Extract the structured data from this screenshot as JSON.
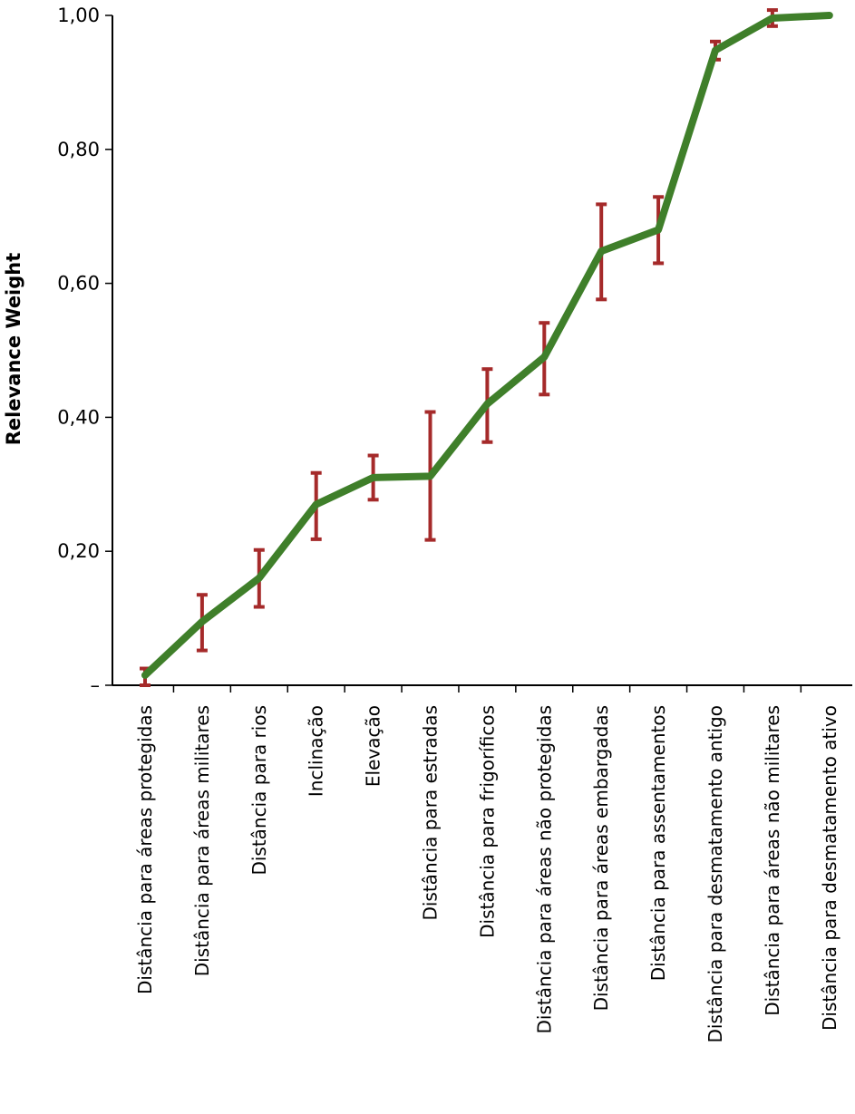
{
  "chart_data": {
    "type": "line",
    "title": "",
    "xlabel": "",
    "ylabel": "Relevance Weight",
    "ylim": [
      0,
      1
    ],
    "yticks": [
      "–",
      "0,20",
      "0,40",
      "0,60",
      "0,80",
      "1,00"
    ],
    "ytick_values": [
      0,
      0.2,
      0.4,
      0.6,
      0.8,
      1.0
    ],
    "grid": false,
    "legend": "none",
    "colors": {
      "line": "#3f7f2a",
      "error_bars": "#a52a2a"
    },
    "categories": [
      "Distância para áreas protegidas",
      "Distância para áreas militares",
      "Distância para rios",
      "Inclinação",
      "Elevação",
      "Distância para estradas",
      "Distância para frigoríficos",
      "Distância para áreas não protegidas",
      "Distância para áreas embargadas",
      "Distância para assentamentos",
      "Distância para desmatamento antigo",
      "Distância para áreas não militares",
      "Distância para desmatamento ativo"
    ],
    "values": [
      0.015,
      0.095,
      0.16,
      0.27,
      0.31,
      0.312,
      0.42,
      0.49,
      0.648,
      0.68,
      0.948,
      0.996,
      1.0
    ],
    "error_low": [
      0.0,
      0.052,
      0.117,
      0.218,
      0.277,
      0.217,
      0.363,
      0.434,
      0.576,
      0.63,
      0.934,
      0.984,
      1.0
    ],
    "error_high": [
      0.025,
      0.135,
      0.202,
      0.317,
      0.343,
      0.408,
      0.472,
      0.541,
      0.718,
      0.729,
      0.961,
      1.008,
      1.0
    ]
  }
}
